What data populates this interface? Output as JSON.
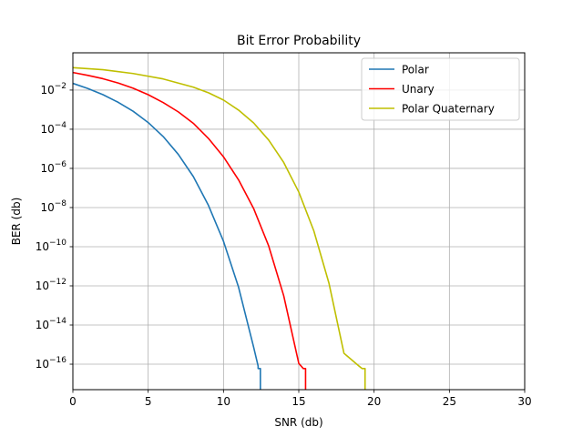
{
  "chart_data": {
    "type": "line",
    "title": "Bit Error Probability",
    "xlabel": "SNR (db)",
    "ylabel": "BER (db)",
    "xlim": [
      0,
      30
    ],
    "ylim": [
      5e-18,
      0.8
    ],
    "yscale": "log",
    "grid": true,
    "legend_position": "top-right",
    "x_ticks": [
      0,
      5,
      10,
      15,
      20,
      25,
      30
    ],
    "y_ticks": [
      {
        "exp": -2,
        "value": 0.01
      },
      {
        "exp": -4,
        "value": 0.0001
      },
      {
        "exp": -6,
        "value": 1e-06
      },
      {
        "exp": -8,
        "value": 1e-08
      },
      {
        "exp": -10,
        "value": 1e-10
      },
      {
        "exp": -12,
        "value": 1e-12
      },
      {
        "exp": -14,
        "value": 1e-14
      },
      {
        "exp": -16,
        "value": 1e-16
      }
    ],
    "series": [
      {
        "name": "Polar",
        "color": "#1f77b4",
        "x": [
          0,
          1,
          2,
          3,
          4,
          5,
          6,
          7,
          8,
          9,
          10,
          11,
          12,
          12.3,
          12.3,
          12.45,
          12.45
        ],
        "y": [
          0.022,
          0.012,
          0.0058,
          0.0024,
          0.00083,
          0.00022,
          4.2e-05,
          5.2e-06,
          3.8e-07,
          1.3e-08,
          1.9e-10,
          8.6e-13,
          7.5e-16,
          8e-17,
          6e-17,
          6e-17,
          5e-18
        ]
      },
      {
        "name": "Unary",
        "color": "#ff0000",
        "x": [
          0,
          1,
          2,
          3,
          4,
          5,
          6,
          7,
          8,
          9,
          10,
          11,
          12,
          13,
          14,
          15,
          15.3,
          15.3,
          15.45,
          15.45
        ],
        "y": [
          0.079,
          0.056,
          0.038,
          0.023,
          0.0125,
          0.0058,
          0.0023,
          0.00077,
          0.0002,
          3.4e-05,
          3.9e-06,
          2.6e-07,
          9e-09,
          1.1e-10,
          3.1e-13,
          1.1e-16,
          6e-17,
          6e-17,
          6e-17,
          5e-18
        ]
      },
      {
        "name": "Polar Quaternary",
        "color": "#bfbf00",
        "x": [
          0,
          2,
          4,
          6,
          8,
          9,
          10,
          11,
          12,
          13,
          14,
          15,
          16,
          17,
          18,
          19,
          19.2,
          19.2,
          19.4,
          19.4
        ],
        "y": [
          0.14,
          0.11,
          0.07,
          0.037,
          0.014,
          0.0073,
          0.0031,
          0.00095,
          0.00021,
          2.8e-05,
          2e-06,
          6.2e-08,
          6.4e-10,
          1.4e-12,
          3.6e-16,
          8e-17,
          6e-17,
          6e-17,
          6e-17,
          5e-18
        ]
      }
    ]
  }
}
